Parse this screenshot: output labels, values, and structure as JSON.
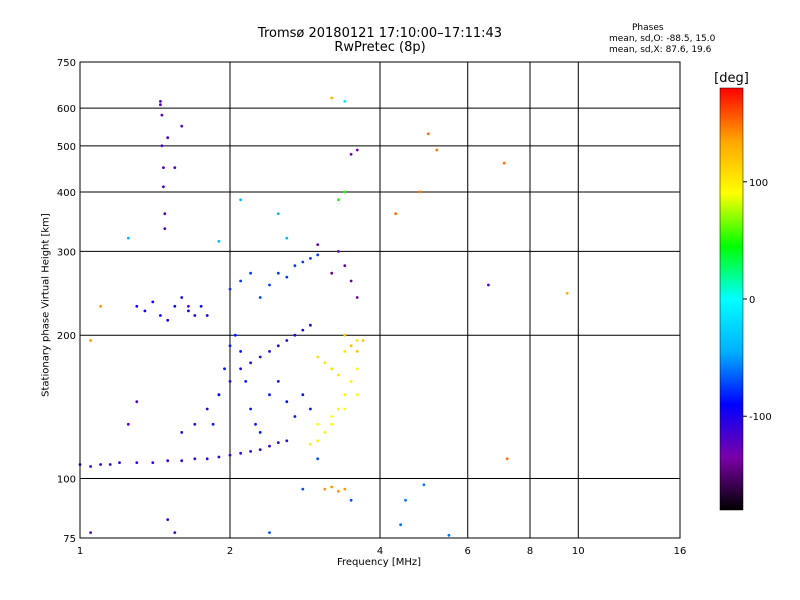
{
  "chart_data": {
    "type": "scatter",
    "title": "Tromsø 20180121 17:10:00–17:11:43",
    "subtitle": "RwPretec (8p)",
    "xlabel": "Frequency [MHz]",
    "ylabel": "Stationary phase Virtual Height [km]",
    "x_scale": "log",
    "y_scale": "log",
    "xlim": [
      1,
      16
    ],
    "ylim": [
      75,
      750
    ],
    "x_ticks": [
      1,
      2,
      4,
      6,
      8,
      10,
      16
    ],
    "y_ticks": [
      75,
      100,
      200,
      300,
      400,
      500,
      600,
      750
    ],
    "grid": true,
    "annotations": {
      "phases_title": "Phases",
      "phases_line1": "mean, sd,O: -88.5, 15.0",
      "phases_line2": "mean, sd,X:  87.6, 19.6"
    },
    "colorbar": {
      "label": "[deg]",
      "range": [
        -180,
        180
      ],
      "ticks": [
        100,
        0,
        -100
      ],
      "colors": [
        "#000000",
        "#7a00a8",
        "#0000ff",
        "#00b0ff",
        "#00ffff",
        "#00ff00",
        "#ffff00",
        "#ffa500",
        "#ff0000"
      ]
    },
    "series": [
      {
        "x": [
          1.0,
          1.05,
          1.1,
          1.15,
          1.2,
          1.3,
          1.4,
          1.5,
          1.6,
          1.7,
          1.8,
          1.9,
          2.0,
          2.1,
          2.2,
          2.3,
          2.4,
          2.5,
          2.6
        ],
        "y": [
          107,
          106,
          107,
          107,
          108,
          108,
          108,
          109,
          109,
          110,
          110,
          111,
          112,
          113,
          114,
          115,
          117,
          119,
          120
        ],
        "phase": -110
      },
      {
        "x": [
          1.45,
          1.45,
          1.46,
          1.46,
          1.47,
          1.47,
          1.48,
          1.48,
          1.5,
          1.55,
          1.6,
          1.65
        ],
        "y": [
          620,
          610,
          580,
          500,
          450,
          410,
          360,
          335,
          520,
          450,
          550,
          230
        ],
        "phase": -120
      },
      {
        "x": [
          1.3,
          1.35,
          1.4,
          1.45,
          1.5,
          1.55,
          1.6,
          1.65,
          1.7,
          1.75,
          1.8
        ],
        "y": [
          230,
          225,
          235,
          220,
          215,
          230,
          240,
          225,
          220,
          230,
          220
        ],
        "phase": -95
      },
      {
        "x": [
          1.6,
          1.7,
          1.8,
          1.9,
          2.0,
          2.1,
          2.2,
          2.3,
          2.4,
          2.5,
          2.6,
          2.7,
          2.8,
          2.9
        ],
        "y": [
          125,
          130,
          140,
          150,
          160,
          170,
          175,
          180,
          185,
          190,
          195,
          200,
          205,
          210
        ],
        "phase": -105
      },
      {
        "x": [
          1.85,
          1.9,
          1.95,
          2.0,
          2.05,
          2.1,
          2.15,
          2.2,
          2.25,
          2.3,
          2.4,
          2.5,
          2.6,
          2.7,
          2.8,
          2.9
        ],
        "y": [
          130,
          150,
          170,
          190,
          200,
          185,
          160,
          140,
          130,
          125,
          150,
          160,
          145,
          135,
          150,
          140
        ],
        "phase": -85
      },
      {
        "x": [
          2.0,
          2.1,
          2.2,
          2.3,
          2.4,
          2.5,
          2.6,
          2.7,
          2.8,
          2.9,
          3.0
        ],
        "y": [
          250,
          260,
          270,
          240,
          255,
          270,
          265,
          280,
          285,
          290,
          295
        ],
        "phase": -75
      },
      {
        "x": [
          2.9,
          3.0,
          3.1,
          3.2,
          3.3,
          3.4,
          3.5,
          3.6
        ],
        "y": [
          118,
          120,
          125,
          130,
          140,
          150,
          160,
          170
        ],
        "phase": 95
      },
      {
        "x": [
          3.0,
          3.1,
          3.2,
          3.3,
          3.4,
          3.5,
          3.6
        ],
        "y": [
          180,
          175,
          170,
          165,
          185,
          190,
          195
        ],
        "phase": 105
      },
      {
        "x": [
          3.0,
          3.2,
          3.4,
          3.6
        ],
        "y": [
          130,
          135,
          140,
          150
        ],
        "phase": 90
      },
      {
        "x": [
          3.1,
          3.2,
          3.3,
          3.4
        ],
        "y": [
          95,
          96,
          94,
          95
        ],
        "phase": 140
      },
      {
        "x": [
          3.4,
          3.5,
          3.6,
          3.7
        ],
        "y": [
          200,
          190,
          185,
          195
        ],
        "phase": 120
      },
      {
        "x": [
          3.2,
          3.4,
          3.6,
          3.5
        ],
        "y": [
          270,
          280,
          240,
          260
        ],
        "phase": -140
      },
      {
        "x": [
          3.0,
          3.3
        ],
        "y": [
          310,
          300
        ],
        "phase": -130
      },
      {
        "x": [
          3.2
        ],
        "y": [
          630
        ],
        "phase": 130
      },
      {
        "x": [
          3.4
        ],
        "y": [
          620
        ],
        "phase": -10
      },
      {
        "x": [
          3.5,
          3.6
        ],
        "y": [
          480,
          490
        ],
        "phase": -130
      },
      {
        "x": [
          3.4,
          3.3
        ],
        "y": [
          400,
          385
        ],
        "phase": 50
      },
      {
        "x": [
          2.1,
          2.5,
          2.6,
          1.9,
          1.25
        ],
        "y": [
          385,
          360,
          320,
          315,
          320
        ],
        "phase": -40
      },
      {
        "x": [
          4.3,
          4.8,
          5.0,
          5.2
        ],
        "y": [
          360,
          400,
          530,
          490
        ],
        "phase": 150
      },
      {
        "x": [
          4.4,
          4.5,
          4.9,
          5.5
        ],
        "y": [
          80,
          90,
          97,
          76
        ],
        "phase": -60
      },
      {
        "x": [
          6.6
        ],
        "y": [
          255
        ],
        "phase": -120
      },
      {
        "x": [
          7.1,
          7.2
        ],
        "y": [
          460,
          110
        ],
        "phase": 150
      },
      {
        "x": [
          9.5
        ],
        "y": [
          245
        ],
        "phase": 130
      },
      {
        "x": [
          1.05,
          1.1
        ],
        "y": [
          195,
          230
        ],
        "phase": 140
      },
      {
        "x": [
          1.05,
          1.25,
          1.3
        ],
        "y": [
          77,
          130,
          145
        ],
        "phase": -120
      },
      {
        "x": [
          1.5,
          1.55
        ],
        "y": [
          82,
          77
        ],
        "phase": -110
      },
      {
        "x": [
          2.4,
          2.8,
          3.0,
          3.5
        ],
        "y": [
          77,
          95,
          110,
          90
        ],
        "phase": -70
      }
    ]
  }
}
